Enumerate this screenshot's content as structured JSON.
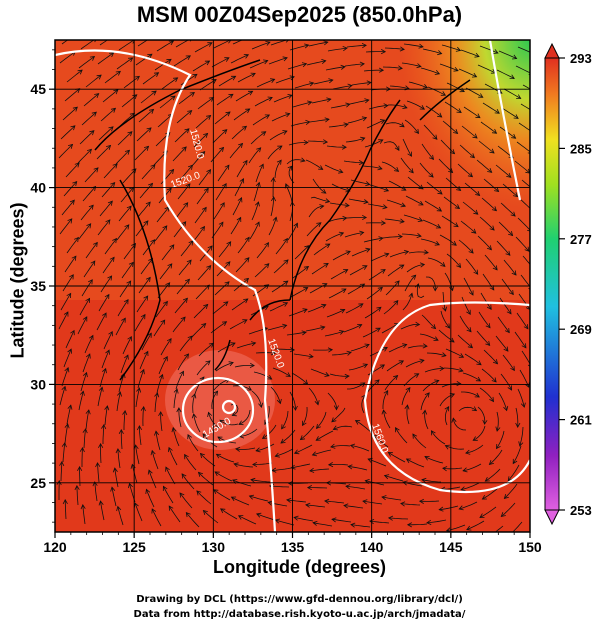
{
  "title": "MSM 00Z04Sep2025 (850.0hPa)",
  "xlabel": "Longitude (degrees)",
  "ylabel": "Latitude  (degrees)",
  "x_ticks": [
    "120",
    "125",
    "130",
    "135",
    "140",
    "145",
    "150"
  ],
  "y_ticks": [
    "25",
    "30",
    "35",
    "40",
    "45"
  ],
  "colorbar_ticks": [
    "293",
    "285",
    "277",
    "269",
    "261",
    "253"
  ],
  "credit_line1": "Drawing by DCL (https://www.gfd-dennou.org/library/dcl/)",
  "credit_line2": "Data from http://database.rish.kyoto-u.ac.jp/arch/jmadata/",
  "contour_labels": [
    "1520.0",
    "1520.0",
    "1520.0",
    "1450.0",
    "1560.0"
  ],
  "map_extent": {
    "lon": [
      120,
      150
    ],
    "lat": [
      22.5,
      47.5
    ]
  },
  "colorbar_range": [
    253,
    293
  ],
  "colors": {
    "warm": "#e8401c",
    "hot": "#d82010",
    "mid": "#f07a20",
    "yellow": "#e8d020",
    "green": "#2ac84a"
  }
}
